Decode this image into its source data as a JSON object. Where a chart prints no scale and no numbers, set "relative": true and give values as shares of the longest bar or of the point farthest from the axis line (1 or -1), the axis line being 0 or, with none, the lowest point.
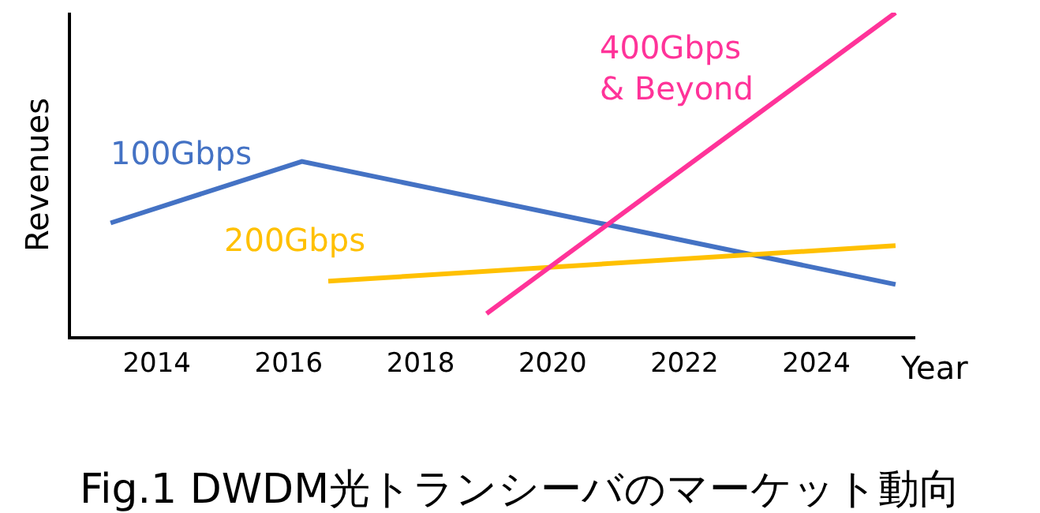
{
  "chart_data": {
    "type": "line",
    "title": "Fig.1 DWDM光トランシーバのマーケット動向",
    "xlabel": "Year",
    "ylabel": "Revenues",
    "relative": true,
    "xlim": [
      2012.7,
      2025.5
    ],
    "xticks": [
      2014,
      2016,
      2018,
      2020,
      2022,
      2024
    ],
    "legend": false,
    "marker": "none",
    "line_style": "solid",
    "series": [
      {
        "name": "100Gbps",
        "color": "#4472c4",
        "x": [
          2013.3,
          2016.2,
          2025.2
        ],
        "values": [
          0.35,
          0.54,
          0.16
        ]
      },
      {
        "name": "200Gbps",
        "color": "#ffc000",
        "x": [
          2016.6,
          2025.2
        ],
        "values": [
          0.17,
          0.28
        ]
      },
      {
        "name": "400Gbps\n& Beyond",
        "color": "#ff3399",
        "x": [
          2019.0,
          2025.2
        ],
        "values": [
          0.07,
          1.0
        ]
      }
    ]
  }
}
